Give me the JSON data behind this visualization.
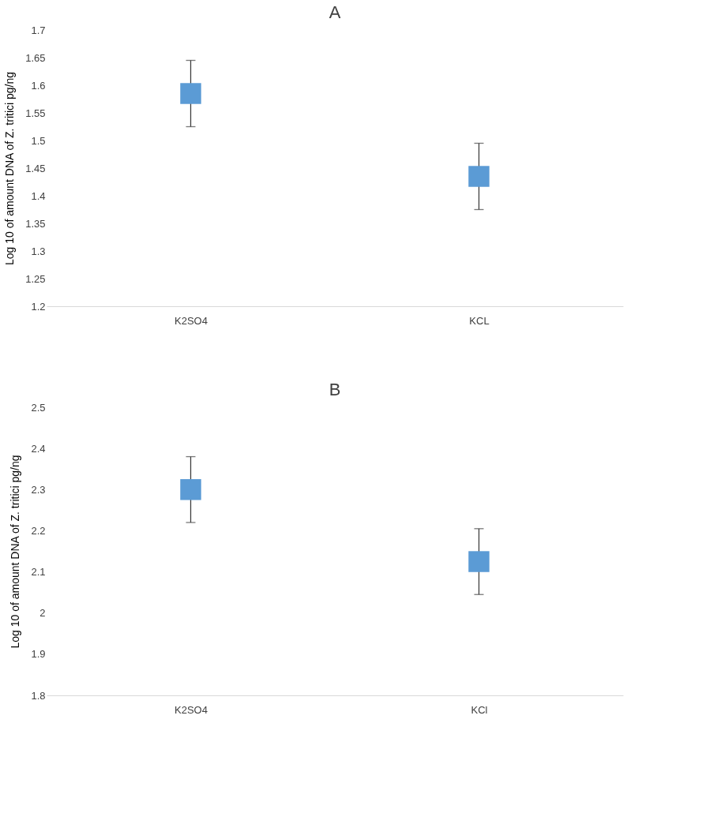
{
  "chart_data": [
    {
      "type": "scatter",
      "title": "A",
      "ylabel": "Log 10 of amount DNA of Z. tritici pg/ng",
      "categories": [
        "K2SO4",
        "KCL"
      ],
      "series": [
        {
          "color": "#5b9bd5",
          "values": [
            1.585,
            1.435
          ],
          "errors": [
            0.06,
            0.06
          ]
        }
      ],
      "ylim": [
        1.2,
        1.7
      ],
      "yticks": [
        1.2,
        1.25,
        1.3,
        1.35,
        1.4,
        1.45,
        1.5,
        1.55,
        1.6,
        1.65,
        1.7
      ],
      "marker": "square",
      "grid": false,
      "legend": false
    },
    {
      "type": "scatter",
      "title": "B",
      "ylabel": "Log 10 of amount DNA of Z. tritici pg/ng",
      "categories": [
        "K2SO4",
        "KCl"
      ],
      "series": [
        {
          "color": "#5b9bd5",
          "values": [
            2.3,
            2.125
          ],
          "errors": [
            0.08,
            0.08
          ]
        }
      ],
      "ylim": [
        1.8,
        2.5
      ],
      "yticks": [
        1.8,
        1.9,
        2,
        2.1,
        2.2,
        2.3,
        2.4,
        2.5
      ],
      "marker": "square",
      "grid": false,
      "legend": false
    }
  ]
}
